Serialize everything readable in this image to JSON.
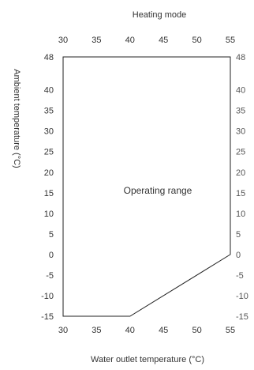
{
  "chart_data": {
    "type": "area",
    "title": "Heating mode",
    "xlabel": "Water outlet temperature (°C)",
    "ylabel": "Ambient temperature (°C)",
    "annotation": "Operating range",
    "xlim": [
      30,
      55
    ],
    "ylim": [
      -15,
      48
    ],
    "x_ticks": [
      30,
      35,
      40,
      45,
      50,
      55
    ],
    "y_ticks": [
      48,
      40,
      35,
      30,
      25,
      20,
      15,
      10,
      5,
      0,
      -5,
      -10,
      -15
    ],
    "grid": false,
    "series": [
      {
        "points": [
          {
            "x": 30,
            "y": 48
          },
          {
            "x": 55,
            "y": 48
          },
          {
            "x": 55,
            "y": 0
          },
          {
            "x": 40,
            "y": -15
          },
          {
            "x": 30,
            "y": -15
          }
        ]
      }
    ],
    "colors": {
      "outline": "#222222",
      "text": "#333333"
    }
  }
}
